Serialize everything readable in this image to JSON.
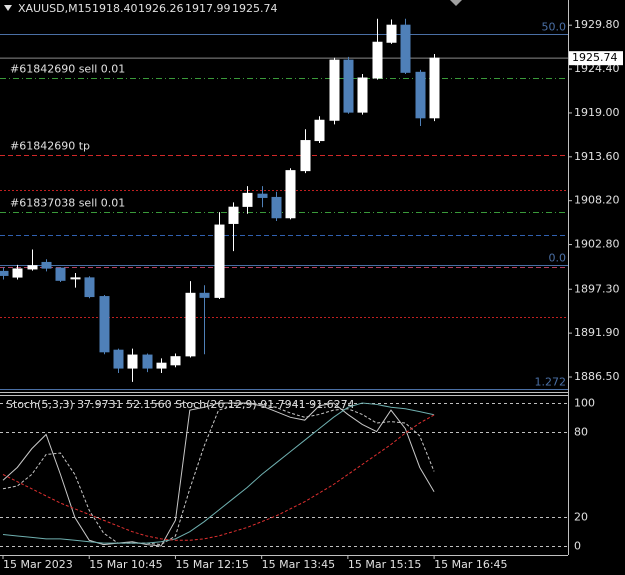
{
  "chart_data": [
    {
      "type": "candlestick",
      "title": "XAUUSD,M15",
      "header_values": [
        "1918.40",
        "1926.26",
        "1917.99",
        "1925.74"
      ],
      "open": [
        1899.5,
        1898.8,
        1899.8,
        1900.6,
        1899.9,
        1898.6,
        1898.7,
        1896.4,
        1889.8,
        1887.6,
        1889.2,
        1887.6,
        1888.0,
        1889.1,
        1896.8,
        1896.3,
        1905.4,
        1907.5,
        1909.0,
        1908.6,
        1906.1,
        1911.9,
        1915.6,
        1918.1,
        1925.5,
        1919.1,
        1923.3,
        1927.7,
        1929.8,
        1924.0,
        1918.4
      ],
      "high": [
        1900.0,
        1900.3,
        1902.2,
        1901.0,
        1900.0,
        1899.3,
        1898.9,
        1896.6,
        1890.0,
        1890.0,
        1889.4,
        1888.8,
        1889.4,
        1898.3,
        1897.8,
        1906.8,
        1908.0,
        1910.0,
        1910.0,
        1909.3,
        1912.2,
        1917.0,
        1918.6,
        1925.8,
        1925.9,
        1923.8,
        1930.6,
        1930.5,
        1930.6,
        1924.3,
        1926.26
      ],
      "low": [
        1898.5,
        1898.5,
        1899.6,
        1899.5,
        1898.2,
        1897.5,
        1896.2,
        1889.3,
        1887.0,
        1885.9,
        1887.1,
        1887.0,
        1887.7,
        1888.9,
        1889.3,
        1896.1,
        1902.0,
        1906.6,
        1907.4,
        1905.7,
        1905.9,
        1911.6,
        1915.3,
        1917.6,
        1918.9,
        1918.8,
        1923.1,
        1927.5,
        1923.8,
        1917.4,
        1917.99
      ],
      "close": [
        1899.0,
        1899.8,
        1900.2,
        1899.9,
        1898.4,
        1898.7,
        1896.4,
        1889.6,
        1887.6,
        1889.2,
        1887.6,
        1888.2,
        1889.0,
        1896.8,
        1896.3,
        1905.2,
        1907.4,
        1909.1,
        1908.6,
        1906.1,
        1911.9,
        1915.6,
        1918.1,
        1925.5,
        1919.1,
        1923.3,
        1927.7,
        1929.8,
        1924.0,
        1918.4,
        1925.74
      ],
      "up_color": "#ffffff",
      "down_color": "#4f80b8",
      "ylim": [
        1884.9,
        1932.9
      ],
      "yticks": [
        {
          "value": 1929.8,
          "label": "1929.80"
        },
        {
          "value": 1924.4,
          "label": "1924.40"
        },
        {
          "value": 1919.0,
          "label": "1919.00"
        },
        {
          "value": 1913.6,
          "label": "1913.60"
        },
        {
          "value": 1908.2,
          "label": "1908.20"
        },
        {
          "value": 1902.8,
          "label": "1902.80"
        },
        {
          "value": 1897.3,
          "label": "1897.30"
        },
        {
          "value": 1891.9,
          "label": "1891.90"
        },
        {
          "value": 1886.5,
          "label": "1886.50"
        }
      ],
      "levels": [
        {
          "label": "50.0",
          "value": 1928.7,
          "color": "#4a6fa5",
          "style": "solid"
        },
        {
          "label": "0.0",
          "value": 1900.3,
          "color": "#4a6fa5",
          "style": "solid"
        },
        {
          "label": "1.272",
          "value": 1885.0,
          "color": "#4a6fa5",
          "style": "solid"
        },
        {
          "label": "#61842690 sell 0.01",
          "value": 1923.3,
          "color": "#3a9a3a",
          "style": "dashdot"
        },
        {
          "label": "#61842690 tp",
          "value": 1913.8,
          "color": "#d02828",
          "style": "dashed"
        },
        {
          "label": "#61837038 sell 0.01",
          "value": 1906.8,
          "color": "#3a9a3a",
          "style": "dashdot"
        },
        {
          "value": 1909.5,
          "color": "#c02020",
          "style": "dotted"
        },
        {
          "value": 1893.9,
          "color": "#c02020",
          "style": "dotted"
        },
        {
          "value": 1904.0,
          "color": "#3060b0",
          "style": "dashed"
        },
        {
          "value": 1900.0,
          "color": "#b04060",
          "style": "dashed"
        }
      ]
    },
    {
      "type": "line",
      "title": "Stoch(5,3,3) 37.9731 52.1560  Stoch(26,12,9) 91.7941 91.6274",
      "categories": [
        "15 Mar 2023",
        null,
        null,
        null,
        null,
        null,
        "15 Mar 10:45",
        null,
        null,
        null,
        null,
        null,
        "15 Mar 12:15",
        null,
        null,
        null,
        null,
        null,
        "15 Mar 13:45",
        null,
        null,
        null,
        null,
        null,
        "15 Mar 15:15",
        null,
        null,
        null,
        null,
        null,
        "15 Mar 16:45"
      ],
      "series": [
        {
          "name": "Stoch(5,3,3)",
          "color": "#c8c8c8",
          "dash": false,
          "values": [
            46,
            55,
            68,
            78,
            50,
            20,
            4,
            1,
            2,
            3,
            1,
            0,
            18,
            95,
            97,
            100,
            100,
            100,
            98,
            94,
            90,
            88,
            98,
            100,
            92,
            85,
            80,
            95,
            82,
            55,
            37.9731
          ]
        },
        {
          "name": "Stoch(5,3,3) signal",
          "color": "#c8c8c8",
          "dash": true,
          "values": [
            40,
            42,
            50,
            64,
            65,
            50,
            25,
            9,
            2,
            2,
            2,
            1,
            7,
            40,
            70,
            95,
            98,
            100,
            99,
            97,
            93,
            90,
            92,
            95,
            96,
            92,
            86,
            87,
            86,
            77,
            52.156
          ]
        },
        {
          "name": "Stoch(26,12,9)",
          "color": "#6fb0b0",
          "dash": false,
          "values": [
            8,
            7,
            6,
            5,
            5,
            4,
            3,
            2,
            2,
            2,
            2,
            3,
            5,
            10,
            17,
            25,
            33,
            41,
            50,
            58,
            66,
            74,
            82,
            90,
            97,
            100,
            99,
            97,
            96,
            94,
            91.7941
          ]
        },
        {
          "name": "Stoch(26,12,9) signal",
          "color": "#e03030",
          "dash": true,
          "values": [
            50,
            45,
            40,
            35,
            30,
            26,
            22,
            18,
            14,
            10,
            7,
            5,
            4,
            4,
            5,
            7,
            10,
            13,
            17,
            21,
            26,
            31,
            37,
            43,
            50,
            57,
            64,
            71,
            79,
            86,
            91.6274
          ]
        }
      ],
      "ylim": [
        -6.3,
        105.6
      ],
      "yticks": [
        0,
        20,
        80,
        100
      ],
      "grid": true
    }
  ]
}
